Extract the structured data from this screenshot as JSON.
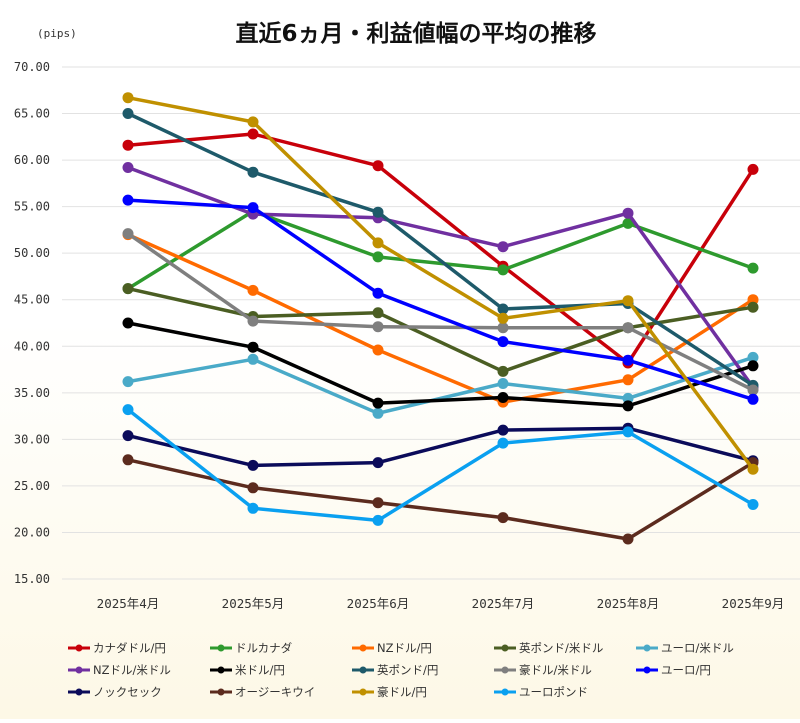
{
  "chart_data": {
    "type": "line",
    "title": "直近6ヵ月・利益値幅の平均の推移",
    "unit_label": "(pips)",
    "ylim": [
      15,
      70
    ],
    "yticks": [
      "15.00",
      "20.00",
      "25.00",
      "30.00",
      "35.00",
      "40.00",
      "45.00",
      "50.00",
      "55.00",
      "60.00",
      "65.00",
      "70.00"
    ],
    "categories": [
      "2025年4月",
      "2025年5月",
      "2025年6月",
      "2025年7月",
      "2025年8月",
      "2025年9月"
    ],
    "grid": true,
    "legend_position": "bottom",
    "series": [
      {
        "name": "カナダドル/円",
        "color": "#c8000a",
        "values": [
          61.6,
          62.8,
          59.4,
          48.6,
          38.2,
          59.0
        ]
      },
      {
        "name": "ドルカナダ",
        "color": "#2e9a2e",
        "values": [
          46.2,
          54.5,
          49.6,
          48.2,
          53.2,
          48.4
        ]
      },
      {
        "name": "NZドル/円",
        "color": "#ff6a00",
        "values": [
          52.0,
          46.0,
          39.6,
          34.0,
          36.4,
          45.0
        ]
      },
      {
        "name": "英ポンド/米ドル",
        "color": "#4b5e23",
        "values": [
          46.2,
          43.2,
          43.6,
          37.3,
          42.0,
          44.2
        ]
      },
      {
        "name": "ユーロ/米ドル",
        "color": "#4aaac8",
        "values": [
          36.2,
          38.6,
          32.8,
          36.0,
          34.4,
          38.8
        ]
      },
      {
        "name": "NZドル/米ドル",
        "color": "#7030a0",
        "values": [
          59.2,
          54.2,
          53.8,
          50.7,
          54.3,
          35.6
        ]
      },
      {
        "name": "米ドル/円",
        "color": "#000000",
        "values": [
          42.5,
          39.9,
          33.9,
          34.5,
          33.6,
          37.9
        ]
      },
      {
        "name": "英ポンド/円",
        "color": "#1e5a6a",
        "values": [
          65.0,
          58.7,
          54.4,
          44.0,
          44.6,
          35.8
        ]
      },
      {
        "name": "豪ドル/米ドル",
        "color": "#7f7f7f",
        "values": [
          52.1,
          42.7,
          42.1,
          42.0,
          42.0,
          35.3
        ]
      },
      {
        "name": "ユーロ/円",
        "color": "#0000ff",
        "values": [
          55.7,
          54.9,
          45.7,
          40.5,
          38.5,
          34.3
        ]
      },
      {
        "name": "ノックセック",
        "color": "#0b0b5a",
        "values": [
          30.4,
          27.2,
          27.5,
          31.0,
          31.2,
          27.7
        ]
      },
      {
        "name": "オージーキウイ",
        "color": "#5c2b1e",
        "values": [
          27.8,
          24.8,
          23.2,
          21.6,
          19.3,
          27.5
        ]
      },
      {
        "name": "豪ドル/円",
        "color": "#c09000",
        "values": [
          66.7,
          64.1,
          51.1,
          43.0,
          44.9,
          26.8
        ]
      },
      {
        "name": "ユーロポンド",
        "color": "#0aa0f0",
        "values": [
          33.2,
          22.6,
          21.3,
          29.6,
          30.8,
          23.0
        ]
      }
    ]
  }
}
